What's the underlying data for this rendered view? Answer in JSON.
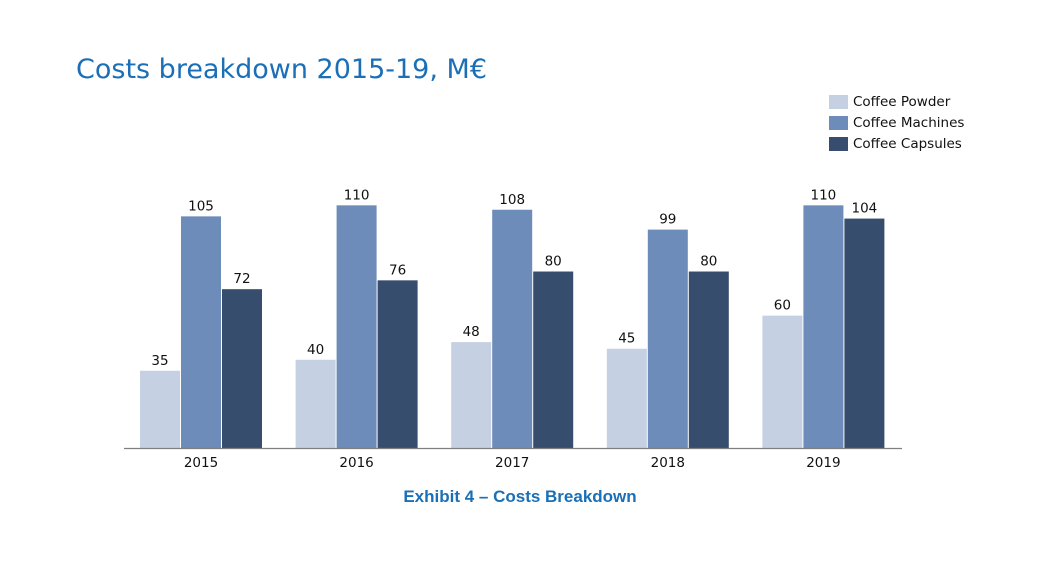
{
  "title": "Costs breakdown 2015-19, M€",
  "caption": "Exhibit 4 – Costs Breakdown",
  "chart_data": {
    "type": "bar",
    "categories": [
      "2015",
      "2016",
      "2017",
      "2018",
      "2019"
    ],
    "series": [
      {
        "name": "Coffee Powder",
        "color": "#c5d0e3",
        "values": [
          35,
          40,
          48,
          45,
          60
        ]
      },
      {
        "name": "Coffee Machines",
        "color": "#6d8cb9",
        "values": [
          105,
          110,
          108,
          99,
          110
        ]
      },
      {
        "name": "Coffee Capsules",
        "color": "#364d6d",
        "values": [
          72,
          76,
          80,
          80,
          104
        ]
      }
    ],
    "legend_position": "top-right",
    "grid": false,
    "ylim": [
      0,
      120
    ]
  }
}
